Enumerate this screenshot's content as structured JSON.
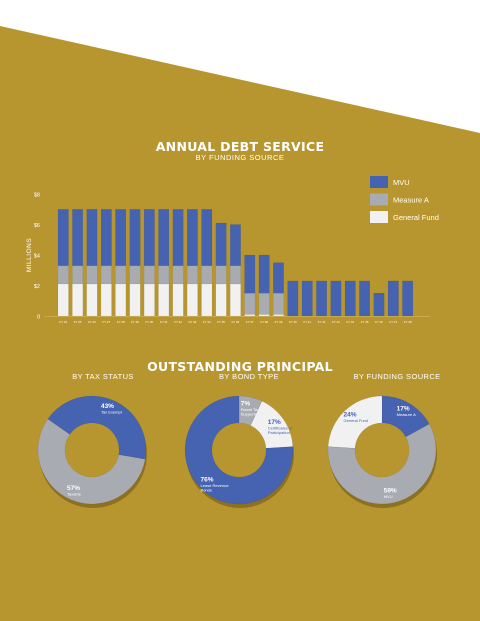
{
  "annual": {
    "title": "ANNUAL DEBT SERVICE",
    "subtitle": "BY FUNDING SOURCE"
  },
  "outstanding": {
    "title": "OUTSTANDING PRINCIPAL",
    "columns": [
      "BY TAX STATUS",
      "BY BOND TYPE",
      "BY FUNDING SOURCE"
    ]
  },
  "colors": {
    "background": "#b8962f",
    "mvu": "#4563b0",
    "measure_a": "#a8abb1",
    "general_fund": "#f1f1f1"
  },
  "chart_data": [
    {
      "type": "bar",
      "stacked": true,
      "title": "ANNUAL DEBT SERVICE",
      "subtitle": "BY FUNDING SOURCE",
      "ylabel": "MILLIONS",
      "ylim": [
        0,
        8
      ],
      "yticks": [
        0,
        2,
        4,
        6,
        8
      ],
      "ytick_labels": [
        "0",
        "$2",
        "$4",
        "$6",
        "$8"
      ],
      "legend_position": "top-right",
      "categories": [
        "FY 24",
        "FY 25",
        "FY 26",
        "FY 27",
        "FY 28",
        "FY 29",
        "FY 30",
        "FY 31",
        "FY 32",
        "FY 33",
        "FY 34",
        "FY 35",
        "FY 36",
        "FY 37",
        "FY 38",
        "FY 39",
        "FY 40",
        "FY 41",
        "FY 42",
        "FY 43",
        "FY 44",
        "FY 45",
        "FY 46",
        "FY 47",
        "FY 48"
      ],
      "series": [
        {
          "name": "General Fund",
          "values": [
            2.1,
            2.1,
            2.1,
            2.1,
            2.1,
            2.1,
            2.1,
            2.1,
            2.1,
            2.1,
            2.1,
            2.1,
            2.1,
            0.1,
            0.1,
            0.1,
            0,
            0,
            0,
            0,
            0,
            0,
            0,
            0,
            0
          ]
        },
        {
          "name": "Measure A",
          "values": [
            1.2,
            1.2,
            1.2,
            1.2,
            1.2,
            1.2,
            1.2,
            1.2,
            1.2,
            1.2,
            1.2,
            1.2,
            1.2,
            1.4,
            1.4,
            1.4,
            0,
            0,
            0,
            0,
            0,
            0,
            0,
            0,
            0
          ]
        },
        {
          "name": "MVU",
          "values": [
            3.7,
            3.7,
            3.7,
            3.7,
            3.7,
            3.7,
            3.7,
            3.7,
            3.7,
            3.7,
            3.7,
            2.8,
            2.7,
            2.5,
            2.5,
            2.0,
            2.3,
            2.3,
            2.3,
            2.3,
            2.3,
            2.3,
            1.5,
            2.3,
            2.3
          ]
        }
      ]
    },
    {
      "type": "pie",
      "title": "BY TAX STATUS",
      "slices": [
        {
          "percent": 43,
          "label": "Tax Exempt",
          "pct_label": "43%",
          "color": "#4563b0"
        },
        {
          "percent": 57,
          "label": "Taxable",
          "pct_label": "57%",
          "color": "#a8abb1"
        }
      ]
    },
    {
      "type": "pie",
      "title": "BY BOND TYPE",
      "slices": [
        {
          "percent": 7,
          "label": "Parcel Tax Supported",
          "pct_label": "7%",
          "color": "#a8abb1"
        },
        {
          "percent": 17,
          "label": "Certificates of Participation",
          "pct_label": "17%",
          "color": "#f1f1f1"
        },
        {
          "percent": 76,
          "label": "Lease Revenue Bonds",
          "pct_label": "76%",
          "color": "#4563b0"
        }
      ]
    },
    {
      "type": "pie",
      "title": "BY FUNDING SOURCE",
      "slices": [
        {
          "percent": 17,
          "label": "Measure A",
          "pct_label": "17%",
          "color": "#4563b0"
        },
        {
          "percent": 59,
          "label": "MVU",
          "pct_label": "59%",
          "color": "#a8abb1"
        },
        {
          "percent": 24,
          "label": "General Fund",
          "pct_label": "24%",
          "color": "#f1f1f1"
        }
      ]
    }
  ]
}
